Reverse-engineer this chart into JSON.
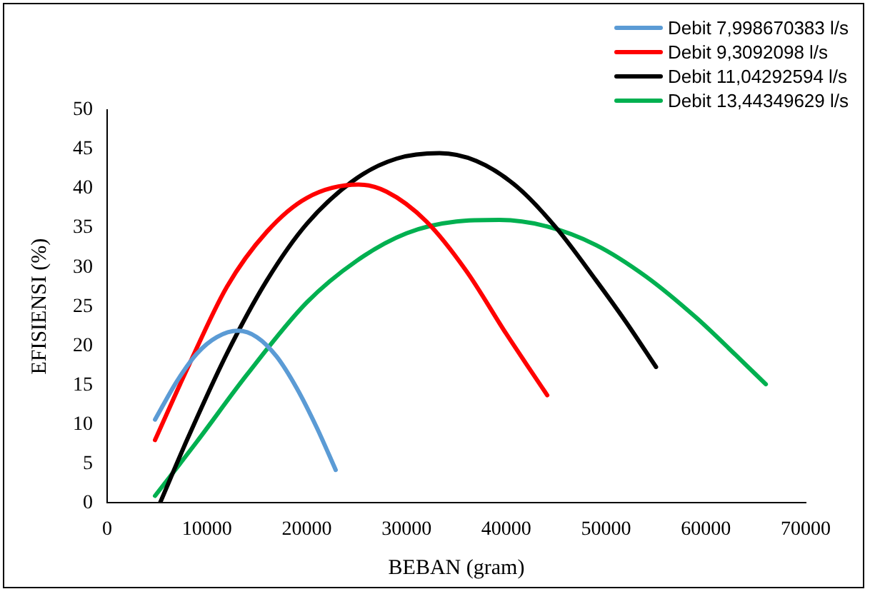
{
  "chart_data": {
    "type": "line",
    "xlabel": "BEBAN (gram)",
    "ylabel": "EFISIENSI (%)",
    "xlim": [
      0,
      70000
    ],
    "xticks": [
      0,
      10000,
      20000,
      30000,
      40000,
      50000,
      60000,
      70000
    ],
    "ylim": [
      0,
      50
    ],
    "yticks": [
      0,
      5,
      10,
      15,
      20,
      25,
      30,
      35,
      40,
      45,
      50
    ],
    "grid": false,
    "legend": "top right",
    "marker": "none",
    "line_style": "solid",
    "series": [
      {
        "name": "Debit 7,998670383 l/s",
        "color": "#5b9bd5",
        "x": [
          4800,
          7000,
          9000,
          11000,
          13100,
          15000,
          17000,
          19000,
          21000,
          22900
        ],
        "values": [
          10.6,
          15.5,
          19,
          21.1,
          21.9,
          21.1,
          18.6,
          14.6,
          9.6,
          4.2
        ]
      },
      {
        "name": "Debit 9,3092098 l/s",
        "color": "#ff0000",
        "x": [
          4800,
          8000,
          12000,
          16000,
          20000,
          25200,
          28000,
          32000,
          36000,
          40000,
          44100
        ],
        "values": [
          8,
          17,
          27.5,
          34.5,
          38.8,
          40.5,
          39.6,
          35.8,
          29.5,
          21.5,
          13.7
        ]
      },
      {
        "name": "Debit 11,04292594 l/s",
        "color": "#000000",
        "x": [
          5300,
          8000,
          12000,
          16000,
          20000,
          25000,
          29000,
          33300,
          37000,
          41000,
          45000,
          49000,
          52000,
          55000
        ],
        "values": [
          0,
          8,
          19,
          28.3,
          35.5,
          41.3,
          43.8,
          44.5,
          43.5,
          40.3,
          35,
          28.3,
          23,
          17.3
        ]
      },
      {
        "name": "Debit 13,44349629 l/s",
        "color": "#00b050",
        "x": [
          4800,
          9000,
          14000,
          20000,
          25000,
          30000,
          35000,
          39300,
          44000,
          49000,
          54000,
          59000,
          63000,
          66000
        ],
        "values": [
          0.9,
          7.8,
          16.3,
          25.5,
          30.8,
          34.3,
          35.8,
          36,
          35.2,
          32.8,
          28.8,
          23.6,
          18.8,
          15.1
        ]
      }
    ]
  }
}
